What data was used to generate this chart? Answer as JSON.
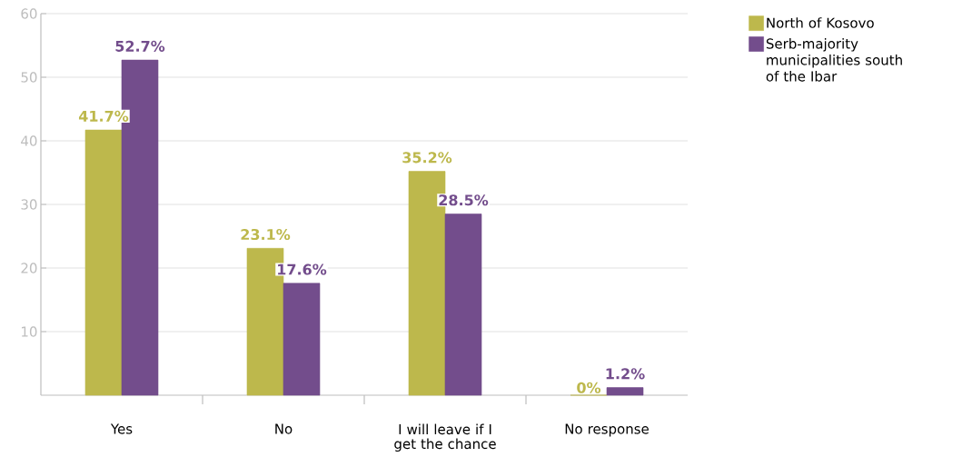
{
  "chart_data": {
    "type": "bar",
    "categories": [
      "Yes",
      "No",
      "I will leave if I get the chance",
      "No response"
    ],
    "series": [
      {
        "name": "North of Kosovo",
        "color": "#bdb84c",
        "values": [
          41.7,
          23.1,
          35.2,
          0
        ],
        "value_labels": [
          "41.7%",
          "23.1%",
          "35.2%",
          "0%"
        ]
      },
      {
        "name": "Serb-majority municipalities south of the Ibar",
        "color": "#734d8c",
        "values": [
          52.7,
          17.6,
          28.5,
          1.2
        ],
        "value_labels": [
          "52.7%",
          "17.6%",
          "28.5%",
          "1.2%"
        ]
      }
    ],
    "ylim": [
      0,
      60
    ],
    "yticks": [
      10,
      20,
      30,
      40,
      50,
      60
    ],
    "grid": "y",
    "legend": "top right"
  }
}
